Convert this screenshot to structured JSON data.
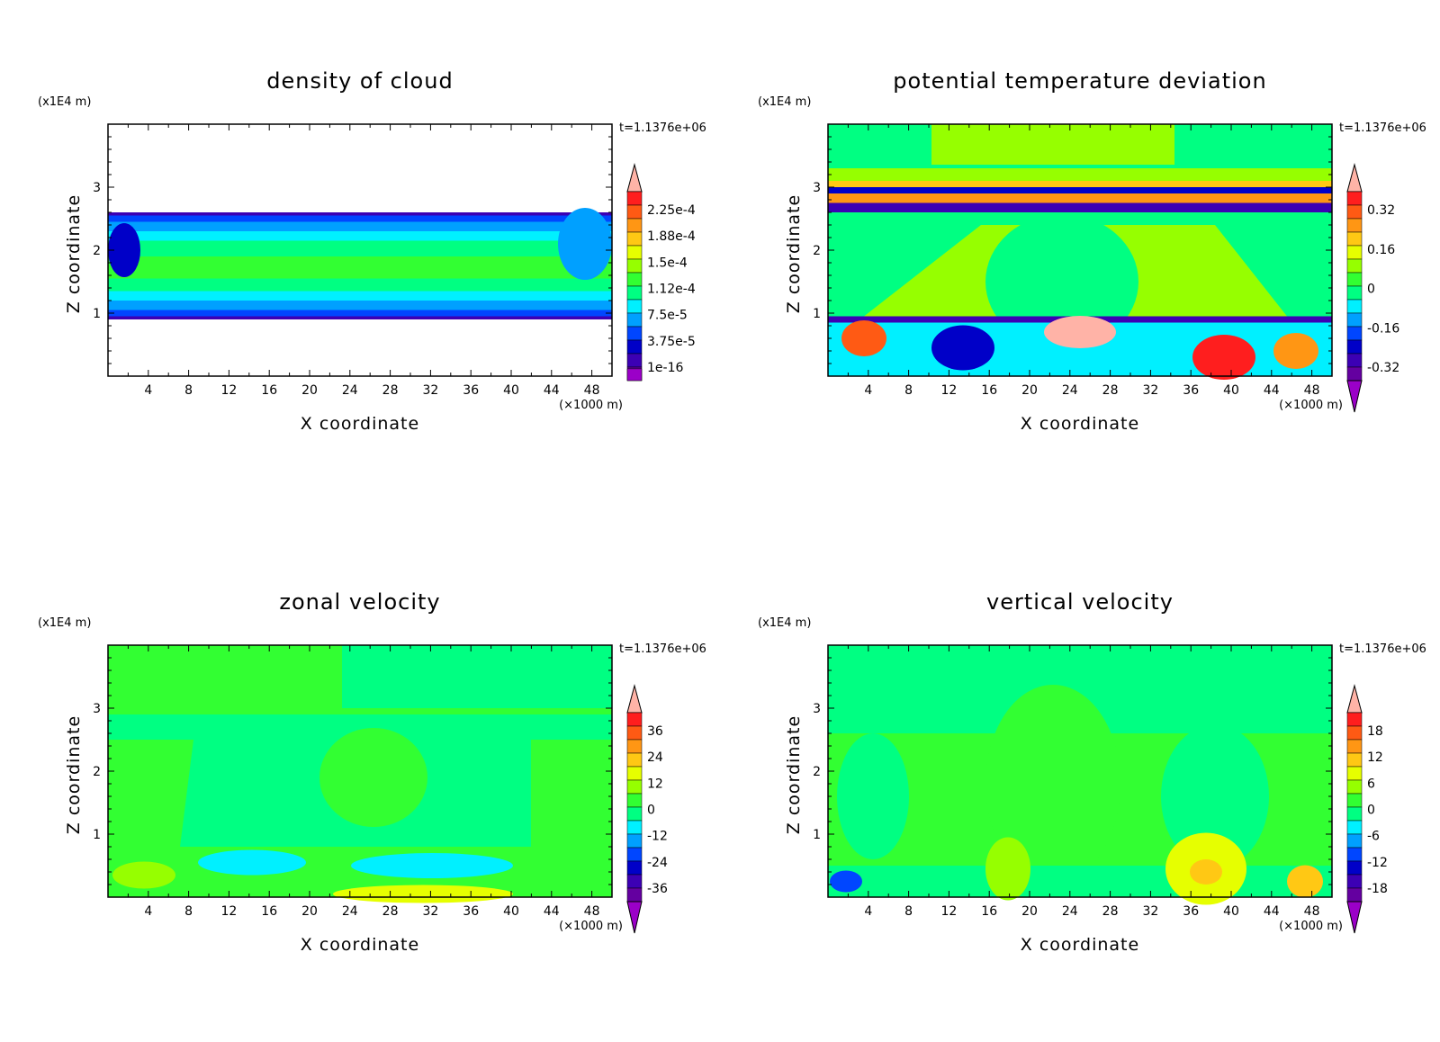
{
  "chart_data": [
    {
      "type": "heatmap",
      "title": "density of cloud",
      "xlabel": "X coordinate",
      "ylabel": "Z coordinate",
      "x_unit": "(×1000 m)",
      "y_unit": "(x1E4 m)",
      "time_label": "t=1.1376e+06",
      "xlim": [
        0,
        50
      ],
      "ylim": [
        0,
        4
      ],
      "x_ticks": [
        "4",
        "8",
        "12",
        "16",
        "20",
        "24",
        "28",
        "32",
        "36",
        "40",
        "44",
        "48"
      ],
      "y_ticks": [
        "1",
        "2",
        "3"
      ],
      "colorbar_labels": [
        "2.25e-4",
        "1.88e-4",
        "1.5e-4",
        "1.12e-4",
        "7.5e-5",
        "3.75e-5",
        "1e-16"
      ],
      "colorbar_colors": [
        "#ffb3a7",
        "#ff1e1e",
        "#ff5a14",
        "#ff9614",
        "#ffc814",
        "#e6ff00",
        "#96ff00",
        "#32ff32",
        "#00ff82",
        "#00f0ff",
        "#00a0ff",
        "#0046ff",
        "#0000c8",
        "#3c00b4",
        "#6400a0",
        "#9b00c8"
      ],
      "colorbar_min_arrow": false
    },
    {
      "type": "heatmap",
      "title": "potential temperature deviation",
      "xlabel": "X coordinate",
      "ylabel": "Z coordinate",
      "x_unit": "(×1000 m)",
      "y_unit": "(x1E4 m)",
      "time_label": "t=1.1376e+06",
      "xlim": [
        0,
        50
      ],
      "ylim": [
        0,
        4
      ],
      "x_ticks": [
        "4",
        "8",
        "12",
        "16",
        "20",
        "24",
        "28",
        "32",
        "36",
        "40",
        "44",
        "48"
      ],
      "y_ticks": [
        "1",
        "2",
        "3"
      ],
      "colorbar_labels": [
        "0.32",
        "0.16",
        "0",
        "-0.16",
        "-0.32"
      ],
      "colorbar_colors": [
        "#ffb3a7",
        "#ff1e1e",
        "#ff5a14",
        "#ff9614",
        "#ffc814",
        "#e6ff00",
        "#96ff00",
        "#32ff32",
        "#00ff82",
        "#00f0ff",
        "#00a0ff",
        "#0046ff",
        "#0000c8",
        "#3c00b4",
        "#6400a0",
        "#9b00c8"
      ],
      "colorbar_min_arrow": true
    },
    {
      "type": "heatmap",
      "title": "zonal velocity",
      "xlabel": "X coordinate",
      "ylabel": "Z coordinate",
      "x_unit": "(×1000 m)",
      "y_unit": "(x1E4 m)",
      "time_label": "t=1.1376e+06",
      "xlim": [
        0,
        50
      ],
      "ylim": [
        0,
        4
      ],
      "x_ticks": [
        "4",
        "8",
        "12",
        "16",
        "20",
        "24",
        "28",
        "32",
        "36",
        "40",
        "44",
        "48"
      ],
      "y_ticks": [
        "1",
        "2",
        "3"
      ],
      "colorbar_labels": [
        "36",
        "24",
        "12",
        "0",
        "-12",
        "-24",
        "-36"
      ],
      "colorbar_colors": [
        "#ffb3a7",
        "#ff1e1e",
        "#ff5a14",
        "#ff9614",
        "#ffc814",
        "#e6ff00",
        "#96ff00",
        "#32ff32",
        "#00ff82",
        "#00f0ff",
        "#00a0ff",
        "#0046ff",
        "#0000c8",
        "#3c00b4",
        "#6400a0",
        "#9b00c8"
      ],
      "colorbar_min_arrow": true
    },
    {
      "type": "heatmap",
      "title": "vertical velocity",
      "xlabel": "X coordinate",
      "ylabel": "Z coordinate",
      "x_unit": "(×1000 m)",
      "y_unit": "(x1E4 m)",
      "time_label": "t=1.1376e+06",
      "xlim": [
        0,
        50
      ],
      "ylim": [
        0,
        4
      ],
      "x_ticks": [
        "4",
        "8",
        "12",
        "16",
        "20",
        "24",
        "28",
        "32",
        "36",
        "40",
        "44",
        "48"
      ],
      "y_ticks": [
        "1",
        "2",
        "3"
      ],
      "colorbar_labels": [
        "18",
        "12",
        "6",
        "0",
        "-6",
        "-12",
        "-18"
      ],
      "colorbar_colors": [
        "#ffb3a7",
        "#ff1e1e",
        "#ff5a14",
        "#ff9614",
        "#ffc814",
        "#e6ff00",
        "#96ff00",
        "#32ff32",
        "#00ff82",
        "#00f0ff",
        "#00a0ff",
        "#0046ff",
        "#0000c8",
        "#3c00b4",
        "#6400a0",
        "#9b00c8"
      ],
      "colorbar_min_arrow": true
    }
  ]
}
